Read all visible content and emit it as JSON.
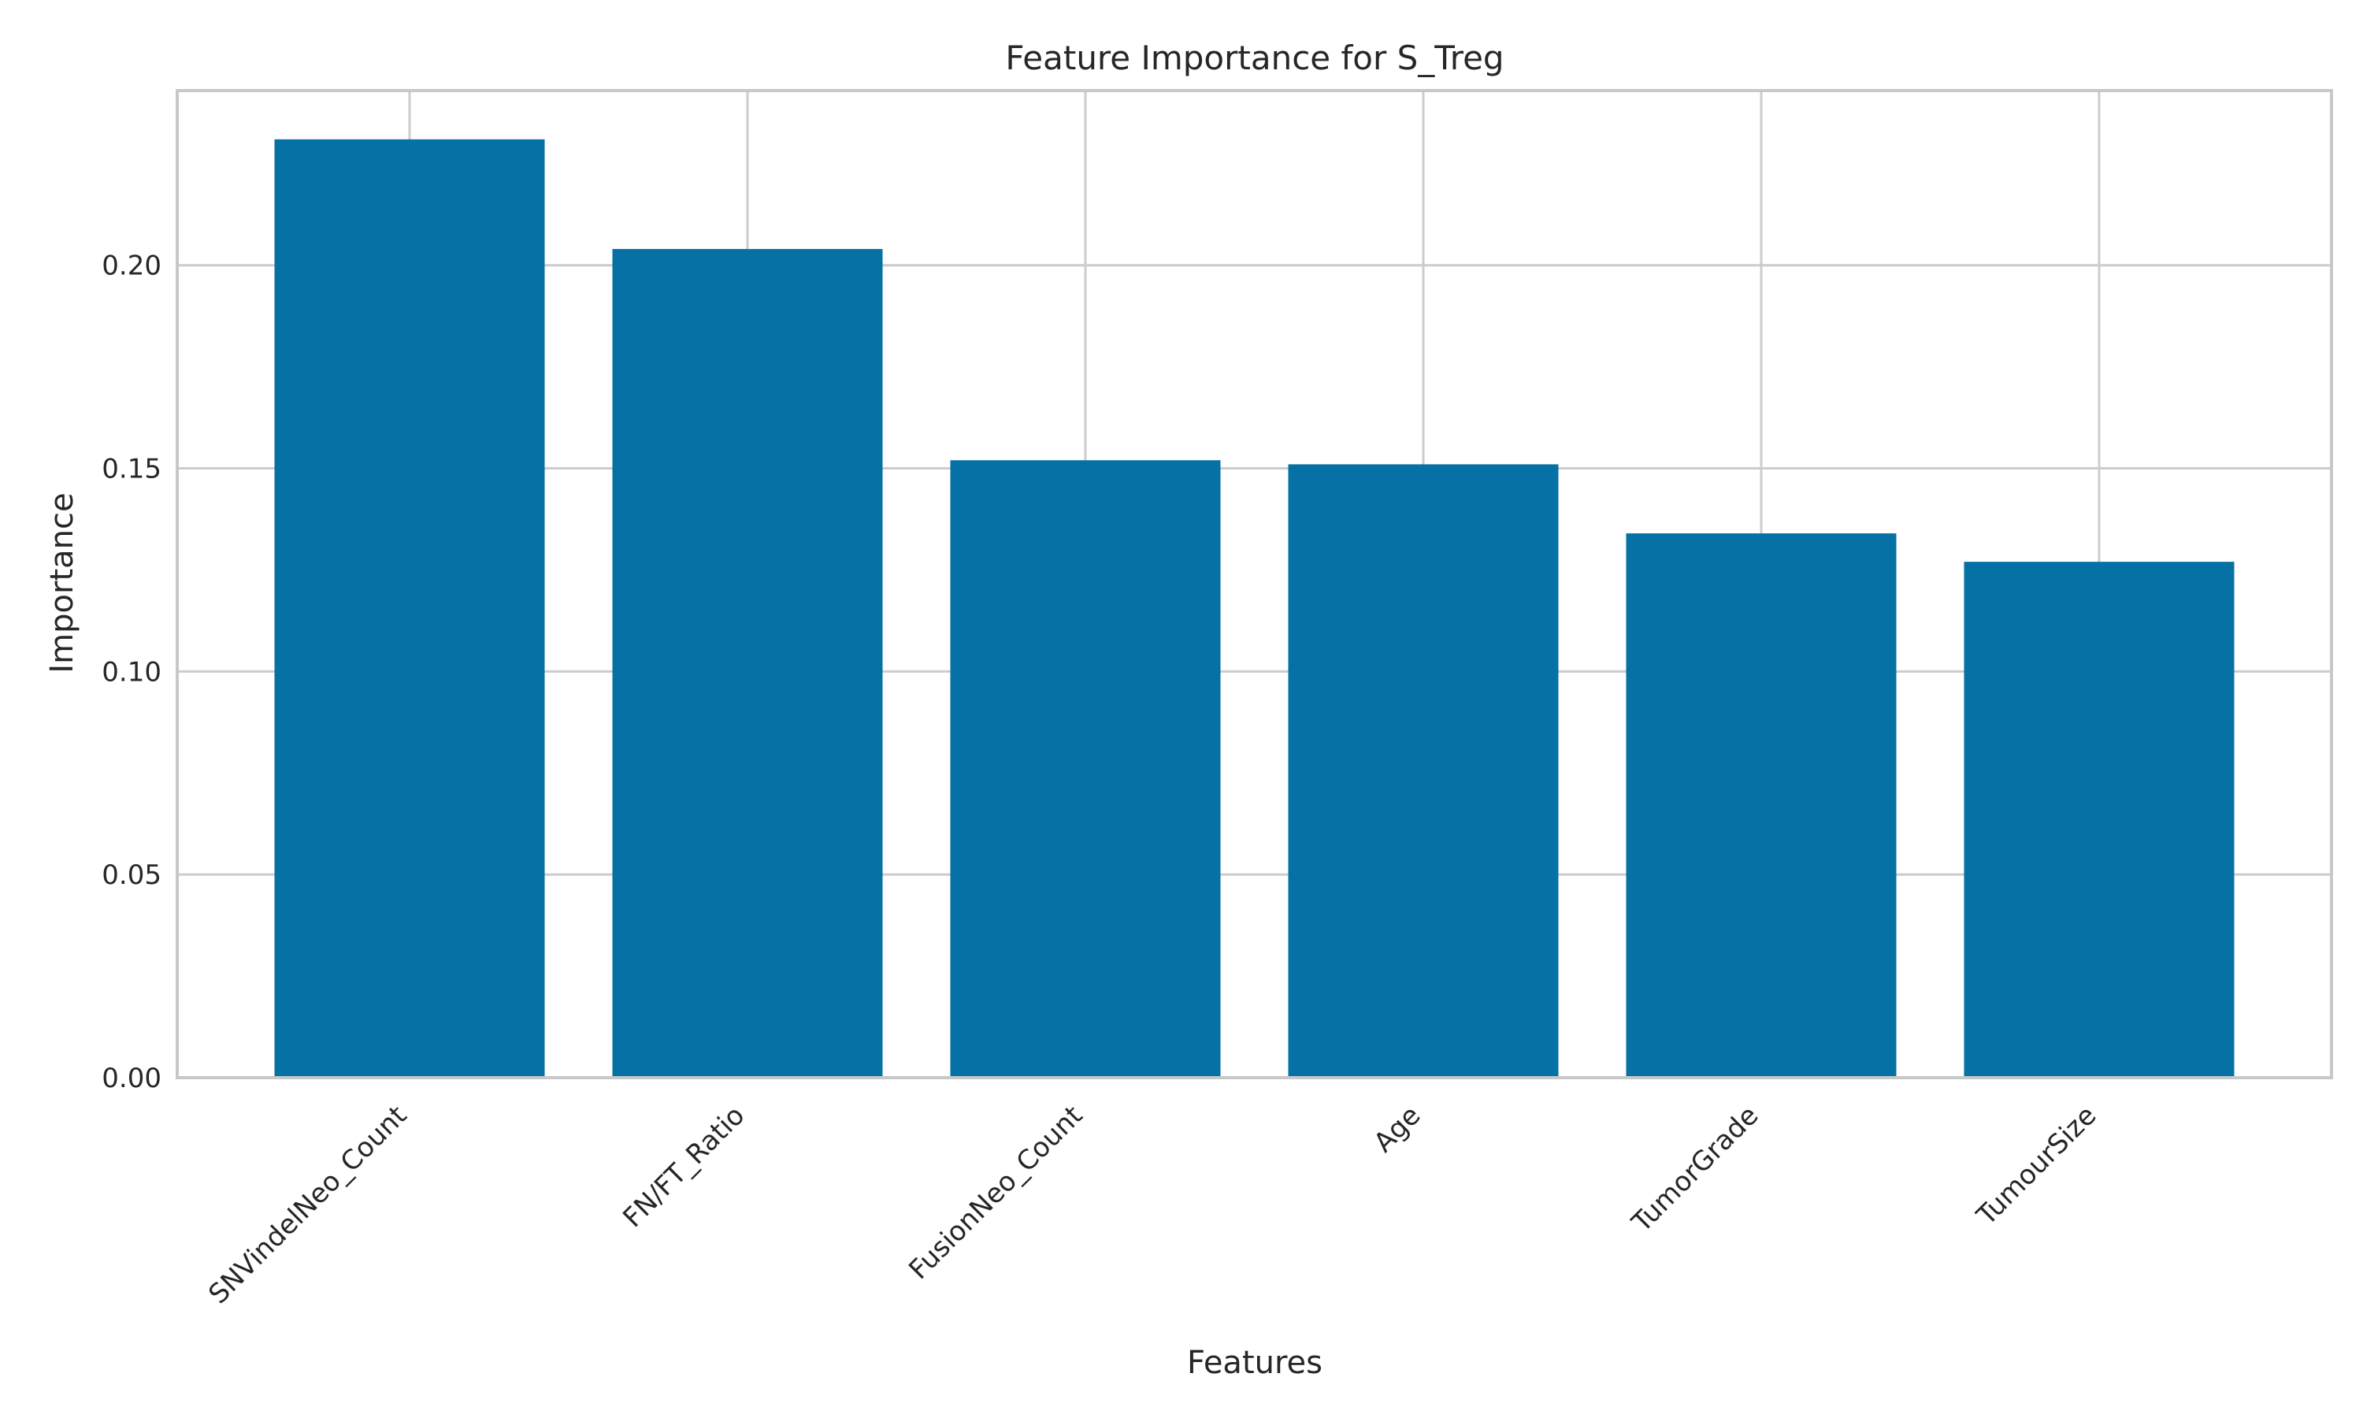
{
  "chart_data": {
    "type": "bar",
    "title": "Feature Importance for S_Treg",
    "xlabel": "Features",
    "ylabel": "Importance",
    "categories": [
      "SNVindelNeo_Count",
      "FN/FT_Ratio",
      "FusionNeo_Count",
      "Age",
      "TumorGrade",
      "TumourSize"
    ],
    "values": [
      0.231,
      0.204,
      0.152,
      0.151,
      0.134,
      0.127
    ],
    "ylim": [
      0,
      0.243
    ],
    "yticks": [
      0.0,
      0.05,
      0.1,
      0.15,
      0.2
    ],
    "ytick_labels": [
      "0.00",
      "0.05",
      "0.10",
      "0.15",
      "0.20"
    ],
    "grid": true,
    "bar_color": "#0571a4",
    "legend": "none"
  }
}
